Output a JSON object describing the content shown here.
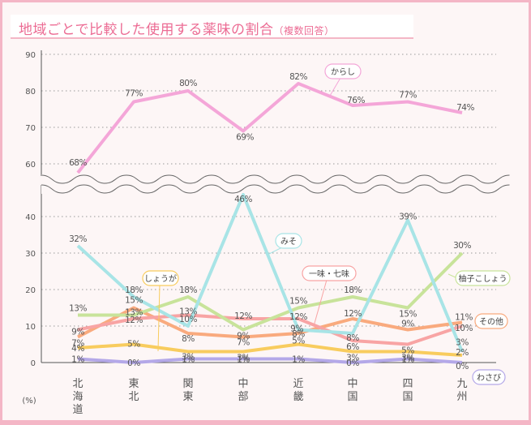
{
  "title": "地域ごとで比較した使用する薬味の割合",
  "title_note": "（複数回答）",
  "unit_label": "(%)",
  "chart_data": {
    "type": "line",
    "title": "地域ごとで比較した使用する薬味の割合（複数回答）",
    "xlabel": "",
    "ylabel": "(%)",
    "categories": [
      "北海道",
      "東北",
      "関東",
      "中部",
      "近畿",
      "中国",
      "四国",
      "九州"
    ],
    "category_lines": [
      [
        "北",
        "海",
        "道"
      ],
      [
        "東",
        "北"
      ],
      [
        "関",
        "東"
      ],
      [
        "中",
        "部"
      ],
      [
        "近",
        "畿"
      ],
      [
        "中",
        "国"
      ],
      [
        "四",
        "国"
      ],
      [
        "九",
        "州"
      ]
    ],
    "upper_panel": {
      "ylim": [
        55,
        90
      ],
      "ticks": [
        60,
        70,
        80,
        90
      ]
    },
    "lower_panel": {
      "ylim": [
        0,
        48
      ],
      "ticks": [
        0,
        10,
        20,
        30,
        40
      ]
    },
    "axis_break": true,
    "grid": "dotted horizontal",
    "series": [
      {
        "name": "からし",
        "panel": "upper",
        "color": "#f4a6d8",
        "values": [
          68,
          77,
          80,
          69,
          82,
          76,
          77,
          74
        ],
        "labels": [
          "68%",
          "77%",
          "80%",
          "69%",
          "82%",
          "76%",
          "77%",
          "74%"
        ]
      },
      {
        "name": "みそ",
        "panel": "lower",
        "color": "#a8e4e6",
        "values": [
          32,
          18,
          10,
          46,
          9,
          8,
          39,
          3
        ],
        "labels": [
          "32%",
          "18%",
          "10%",
          "46%",
          "9%",
          "8%",
          "39%",
          "3%"
        ]
      },
      {
        "name": "柚子こしょう",
        "panel": "lower",
        "color": "#c8e39a",
        "values": [
          13,
          13,
          18,
          9,
          15,
          18,
          15,
          30
        ],
        "labels": [
          "13%",
          "13%",
          "18%",
          "9%",
          "15%",
          "18%",
          "15%",
          "30%"
        ]
      },
      {
        "name": "一味・七味",
        "panel": "lower",
        "color": "#f8a4a4",
        "values": [
          9,
          12,
          13,
          12,
          12,
          6,
          5,
          10
        ],
        "labels": [
          "9%",
          "12%",
          "13%",
          "12%",
          "12%",
          "6%",
          "5%",
          "10%"
        ]
      },
      {
        "name": "その他",
        "panel": "lower",
        "color": "#f9aa7e",
        "values": [
          7,
          15,
          8,
          7,
          8,
          12,
          9,
          11
        ],
        "labels": [
          "7%",
          "15%",
          "8%",
          "7%",
          "8%",
          "12%",
          "9%",
          "11%"
        ]
      },
      {
        "name": "しょうが",
        "panel": "lower",
        "color": "#f8cc5e",
        "values": [
          4,
          5,
          3,
          3,
          5,
          3,
          3,
          2
        ],
        "labels": [
          "4%",
          "5%",
          "3%",
          "3%",
          "5%",
          "3%",
          "3%",
          "2%"
        ]
      },
      {
        "name": "わさび",
        "panel": "lower",
        "color": "#b4a8e8",
        "values": [
          1,
          0,
          1,
          1,
          1,
          0,
          1,
          0
        ],
        "labels": [
          "1%",
          "0%",
          "1%",
          "1%",
          "1%",
          "0%",
          "1%",
          "0%"
        ]
      }
    ],
    "legend": "callouts next to each line"
  }
}
